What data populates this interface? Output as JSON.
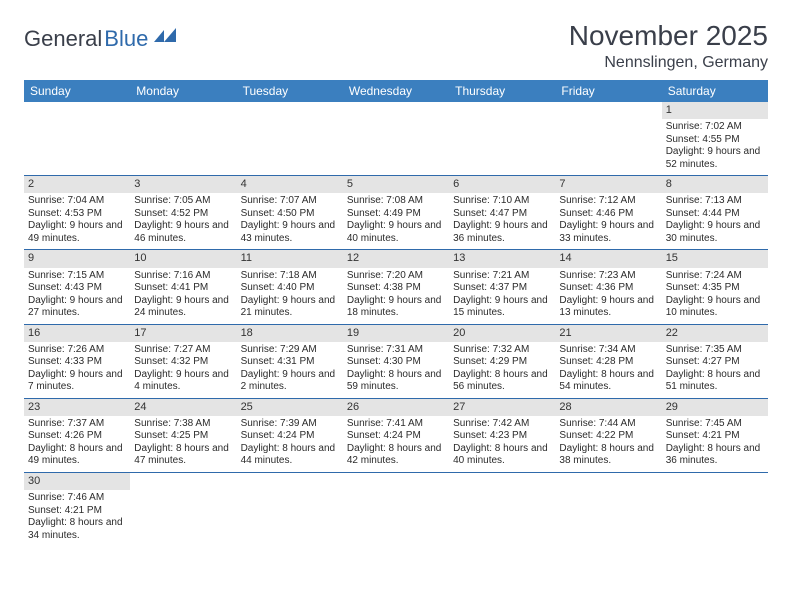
{
  "logo": {
    "general": "General",
    "blue": "Blue"
  },
  "title": "November 2025",
  "location": "Nennslingen, Germany",
  "colors": {
    "header_bg": "#3b7fbf",
    "header_text": "#ffffff",
    "daynum_bg": "#e4e4e4",
    "cell_border": "#2f6aab",
    "text": "#2b2b2b"
  },
  "weekdays": [
    "Sunday",
    "Monday",
    "Tuesday",
    "Wednesday",
    "Thursday",
    "Friday",
    "Saturday"
  ],
  "weeks": [
    [
      null,
      null,
      null,
      null,
      null,
      null,
      {
        "n": "1",
        "sr": "Sunrise: 7:02 AM",
        "ss": "Sunset: 4:55 PM",
        "dl": "Daylight: 9 hours and 52 minutes."
      }
    ],
    [
      {
        "n": "2",
        "sr": "Sunrise: 7:04 AM",
        "ss": "Sunset: 4:53 PM",
        "dl": "Daylight: 9 hours and 49 minutes."
      },
      {
        "n": "3",
        "sr": "Sunrise: 7:05 AM",
        "ss": "Sunset: 4:52 PM",
        "dl": "Daylight: 9 hours and 46 minutes."
      },
      {
        "n": "4",
        "sr": "Sunrise: 7:07 AM",
        "ss": "Sunset: 4:50 PM",
        "dl": "Daylight: 9 hours and 43 minutes."
      },
      {
        "n": "5",
        "sr": "Sunrise: 7:08 AM",
        "ss": "Sunset: 4:49 PM",
        "dl": "Daylight: 9 hours and 40 minutes."
      },
      {
        "n": "6",
        "sr": "Sunrise: 7:10 AM",
        "ss": "Sunset: 4:47 PM",
        "dl": "Daylight: 9 hours and 36 minutes."
      },
      {
        "n": "7",
        "sr": "Sunrise: 7:12 AM",
        "ss": "Sunset: 4:46 PM",
        "dl": "Daylight: 9 hours and 33 minutes."
      },
      {
        "n": "8",
        "sr": "Sunrise: 7:13 AM",
        "ss": "Sunset: 4:44 PM",
        "dl": "Daylight: 9 hours and 30 minutes."
      }
    ],
    [
      {
        "n": "9",
        "sr": "Sunrise: 7:15 AM",
        "ss": "Sunset: 4:43 PM",
        "dl": "Daylight: 9 hours and 27 minutes."
      },
      {
        "n": "10",
        "sr": "Sunrise: 7:16 AM",
        "ss": "Sunset: 4:41 PM",
        "dl": "Daylight: 9 hours and 24 minutes."
      },
      {
        "n": "11",
        "sr": "Sunrise: 7:18 AM",
        "ss": "Sunset: 4:40 PM",
        "dl": "Daylight: 9 hours and 21 minutes."
      },
      {
        "n": "12",
        "sr": "Sunrise: 7:20 AM",
        "ss": "Sunset: 4:38 PM",
        "dl": "Daylight: 9 hours and 18 minutes."
      },
      {
        "n": "13",
        "sr": "Sunrise: 7:21 AM",
        "ss": "Sunset: 4:37 PM",
        "dl": "Daylight: 9 hours and 15 minutes."
      },
      {
        "n": "14",
        "sr": "Sunrise: 7:23 AM",
        "ss": "Sunset: 4:36 PM",
        "dl": "Daylight: 9 hours and 13 minutes."
      },
      {
        "n": "15",
        "sr": "Sunrise: 7:24 AM",
        "ss": "Sunset: 4:35 PM",
        "dl": "Daylight: 9 hours and 10 minutes."
      }
    ],
    [
      {
        "n": "16",
        "sr": "Sunrise: 7:26 AM",
        "ss": "Sunset: 4:33 PM",
        "dl": "Daylight: 9 hours and 7 minutes."
      },
      {
        "n": "17",
        "sr": "Sunrise: 7:27 AM",
        "ss": "Sunset: 4:32 PM",
        "dl": "Daylight: 9 hours and 4 minutes."
      },
      {
        "n": "18",
        "sr": "Sunrise: 7:29 AM",
        "ss": "Sunset: 4:31 PM",
        "dl": "Daylight: 9 hours and 2 minutes."
      },
      {
        "n": "19",
        "sr": "Sunrise: 7:31 AM",
        "ss": "Sunset: 4:30 PM",
        "dl": "Daylight: 8 hours and 59 minutes."
      },
      {
        "n": "20",
        "sr": "Sunrise: 7:32 AM",
        "ss": "Sunset: 4:29 PM",
        "dl": "Daylight: 8 hours and 56 minutes."
      },
      {
        "n": "21",
        "sr": "Sunrise: 7:34 AM",
        "ss": "Sunset: 4:28 PM",
        "dl": "Daylight: 8 hours and 54 minutes."
      },
      {
        "n": "22",
        "sr": "Sunrise: 7:35 AM",
        "ss": "Sunset: 4:27 PM",
        "dl": "Daylight: 8 hours and 51 minutes."
      }
    ],
    [
      {
        "n": "23",
        "sr": "Sunrise: 7:37 AM",
        "ss": "Sunset: 4:26 PM",
        "dl": "Daylight: 8 hours and 49 minutes."
      },
      {
        "n": "24",
        "sr": "Sunrise: 7:38 AM",
        "ss": "Sunset: 4:25 PM",
        "dl": "Daylight: 8 hours and 47 minutes."
      },
      {
        "n": "25",
        "sr": "Sunrise: 7:39 AM",
        "ss": "Sunset: 4:24 PM",
        "dl": "Daylight: 8 hours and 44 minutes."
      },
      {
        "n": "26",
        "sr": "Sunrise: 7:41 AM",
        "ss": "Sunset: 4:24 PM",
        "dl": "Daylight: 8 hours and 42 minutes."
      },
      {
        "n": "27",
        "sr": "Sunrise: 7:42 AM",
        "ss": "Sunset: 4:23 PM",
        "dl": "Daylight: 8 hours and 40 minutes."
      },
      {
        "n": "28",
        "sr": "Sunrise: 7:44 AM",
        "ss": "Sunset: 4:22 PM",
        "dl": "Daylight: 8 hours and 38 minutes."
      },
      {
        "n": "29",
        "sr": "Sunrise: 7:45 AM",
        "ss": "Sunset: 4:21 PM",
        "dl": "Daylight: 8 hours and 36 minutes."
      }
    ],
    [
      {
        "n": "30",
        "sr": "Sunrise: 7:46 AM",
        "ss": "Sunset: 4:21 PM",
        "dl": "Daylight: 8 hours and 34 minutes."
      },
      null,
      null,
      null,
      null,
      null,
      null
    ]
  ]
}
